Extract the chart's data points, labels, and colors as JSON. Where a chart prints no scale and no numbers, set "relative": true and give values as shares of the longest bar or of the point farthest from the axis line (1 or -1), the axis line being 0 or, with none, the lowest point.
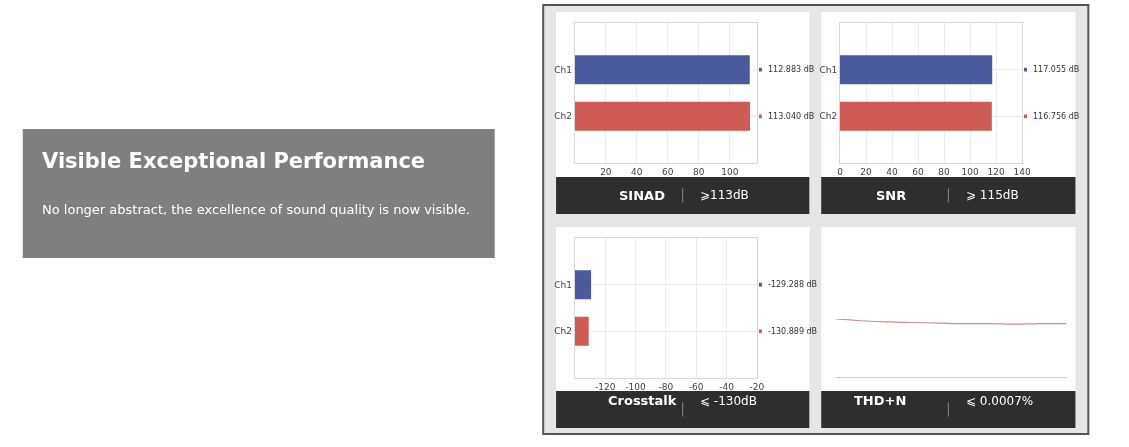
{
  "chart_data": [
    {
      "type": "other",
      "title": "Visible Exceptional Performance",
      "subtitle": "No longer abstract, the excellence of sound quality is now visible."
    },
    {
      "type": "bar",
      "orientation": "horizontal",
      "title": "SINAD",
      "subtitle": "⩾113dB",
      "categories": [
        "Ch1",
        "Ch2"
      ],
      "values": [
        112.883,
        113.04
      ],
      "colors": [
        "#4a5a9c",
        "#d05a54"
      ],
      "value_labels": [
        "112.883 dB",
        "113.040 dB"
      ],
      "xlim": [
        0,
        117.5
      ],
      "xticks": [
        20,
        40,
        60,
        80,
        100
      ],
      "grid": true
    },
    {
      "type": "bar",
      "orientation": "horizontal",
      "title": "SNR",
      "subtitle": "⩾ 115dB",
      "categories": [
        "Ch1",
        "Ch2"
      ],
      "values": [
        117.055,
        116.756
      ],
      "colors": [
        "#4a5a9c",
        "#d05a54"
      ],
      "value_labels": [
        "117.055 dB",
        "116.756 dB"
      ],
      "xlim": [
        0,
        140
      ],
      "xticks": [
        0,
        20,
        40,
        60,
        80,
        100,
        120,
        140
      ],
      "grid": true
    },
    {
      "type": "bar",
      "orientation": "horizontal",
      "title": "Crosstalk",
      "subtitle": "⩽ -130dB",
      "categories": [
        "Ch1",
        "Ch2"
      ],
      "base": [
        -140,
        -140
      ],
      "values": [
        10.712,
        9.111
      ],
      "colors": [
        "#4a5a9c",
        "#d05a54"
      ],
      "value_labels": [
        "-129.288 dB",
        "-130.889 dB"
      ],
      "xlim": [
        -140,
        -20
      ],
      "xticks": [
        -120,
        -100,
        -80,
        -60,
        -40,
        -20
      ],
      "grid": true
    },
    {
      "type": "line",
      "title": "THD+N",
      "subtitle": "⩽ 0.0007%",
      "relative": true,
      "categories": [
        null,
        null,
        null,
        null,
        null,
        null,
        null,
        null,
        null,
        null
      ],
      "values": [
        1,
        0.97,
        0.95,
        0.94,
        0.93,
        0.92,
        0.92,
        0.91,
        0.92,
        0.92
      ],
      "color": "#c89090"
    }
  ]
}
